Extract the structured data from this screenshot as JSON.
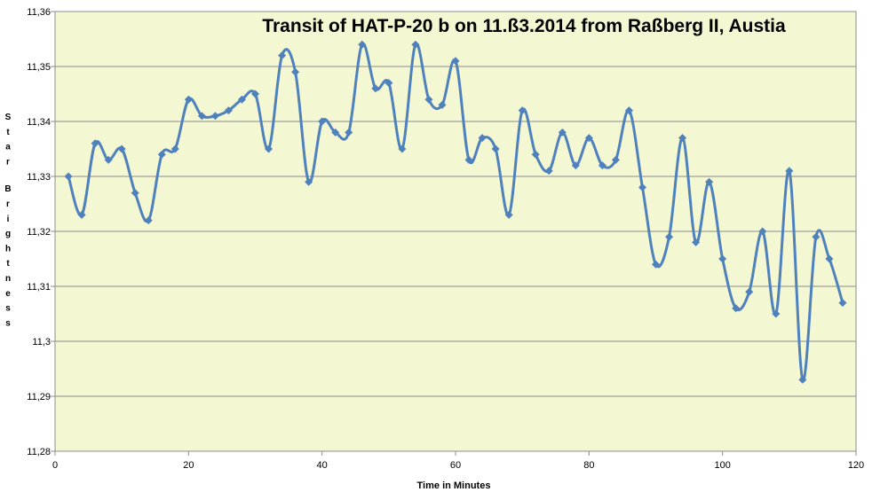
{
  "chart_data": {
    "type": "line",
    "title": "Transit of HAT-P-20 b on 11.ß3.2014  from Raßberg II, Austia",
    "xlabel": "Time in Minutes",
    "ylabel": "Star Brightness",
    "xlim": [
      0,
      120
    ],
    "ylim": [
      11.28,
      11.36
    ],
    "x_ticks": [
      "0",
      "20",
      "40",
      "60",
      "80",
      "100",
      "120"
    ],
    "y_ticks": [
      "11,28",
      "11,29",
      "11,3",
      "11,31",
      "11,32",
      "11,33",
      "11,34",
      "11,35",
      "11,36"
    ],
    "grid": "horizontal",
    "legend": "none",
    "line_color": "#4F81BD",
    "plot_background": "#F4F8D2",
    "series": [
      {
        "x": [
          2,
          4,
          6,
          8,
          10,
          12,
          14,
          16,
          18,
          20,
          22,
          24,
          26,
          28,
          30,
          32,
          34,
          36,
          38,
          40,
          42,
          44,
          46,
          48,
          50,
          52,
          54,
          56,
          58,
          60,
          62,
          64,
          66,
          68,
          70,
          72,
          74,
          76,
          78,
          80,
          82,
          84,
          86,
          88,
          90,
          92,
          94,
          96,
          98,
          100,
          102,
          104,
          106,
          108,
          110,
          112,
          114,
          116,
          118
        ],
        "y": [
          11.33,
          11.323,
          11.336,
          11.333,
          11.335,
          11.327,
          11.322,
          11.334,
          11.335,
          11.344,
          11.341,
          11.341,
          11.342,
          11.344,
          11.345,
          11.335,
          11.352,
          11.349,
          11.329,
          11.34,
          11.338,
          11.338,
          11.354,
          11.346,
          11.347,
          11.335,
          11.354,
          11.344,
          11.343,
          11.351,
          11.333,
          11.337,
          11.335,
          11.323,
          11.342,
          11.334,
          11.331,
          11.338,
          11.332,
          11.337,
          11.332,
          11.333,
          11.342,
          11.328,
          11.314,
          11.319,
          11.337,
          11.318,
          11.329,
          11.315,
          11.306,
          11.309,
          11.32,
          11.305,
          11.331,
          11.293,
          11.319,
          11.315,
          11.307
        ]
      }
    ]
  }
}
